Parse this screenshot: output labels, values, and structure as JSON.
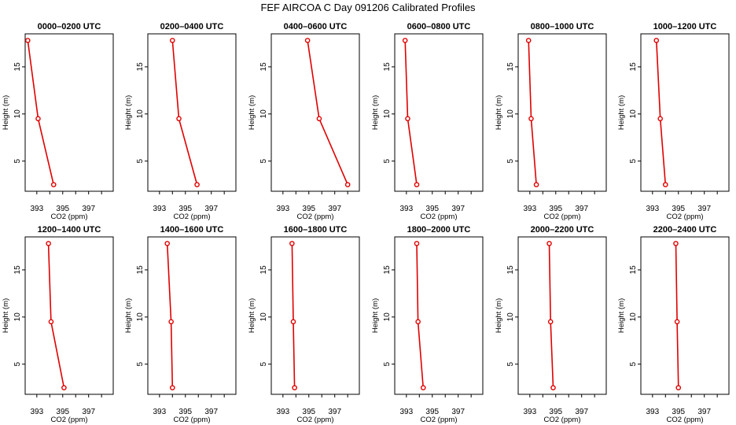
{
  "title": "FEF AIRCOA C  Day 091206  Calibrated Profiles",
  "colors": {
    "line": "#e00000",
    "axis": "#000000",
    "background": "#ffffff"
  },
  "chart_data": [
    {
      "type": "line",
      "title": "0000–0200 UTC",
      "xlabel": "CO2 (ppm)",
      "ylabel": "Height (m)",
      "xlim": [
        392.1,
        398.9
      ],
      "ylim": [
        1.8,
        18.5
      ],
      "xticks": [
        393,
        395,
        397
      ],
      "yticks": [
        5,
        10,
        15
      ],
      "x": [
        392.3,
        393.1,
        394.3
      ],
      "y": [
        17.8,
        9.5,
        2.5
      ]
    },
    {
      "type": "line",
      "title": "0200–0400 UTC",
      "xlabel": "CO2 (ppm)",
      "ylabel": "Height (m)",
      "xlim": [
        392.1,
        398.9
      ],
      "ylim": [
        1.8,
        18.5
      ],
      "xticks": [
        393,
        395,
        397
      ],
      "yticks": [
        5,
        10,
        15
      ],
      "x": [
        394.0,
        394.5,
        395.9
      ],
      "y": [
        17.8,
        9.5,
        2.5
      ]
    },
    {
      "type": "line",
      "title": "0400–0600 UTC",
      "xlabel": "CO2 (ppm)",
      "ylabel": "Height (m)",
      "xlim": [
        392.1,
        398.9
      ],
      "ylim": [
        1.8,
        18.5
      ],
      "xticks": [
        393,
        395,
        397
      ],
      "yticks": [
        5,
        10,
        15
      ],
      "x": [
        394.9,
        395.8,
        398.0
      ],
      "y": [
        17.8,
        9.5,
        2.5
      ]
    },
    {
      "type": "line",
      "title": "0600–0800 UTC",
      "xlabel": "CO2 (ppm)",
      "ylabel": "Height (m)",
      "xlim": [
        392.1,
        398.9
      ],
      "ylim": [
        1.8,
        18.5
      ],
      "xticks": [
        393,
        395,
        397
      ],
      "yticks": [
        5,
        10,
        15
      ],
      "x": [
        392.9,
        393.1,
        393.8
      ],
      "y": [
        17.8,
        9.5,
        2.5
      ]
    },
    {
      "type": "line",
      "title": "0800–1000 UTC",
      "xlabel": "CO2 (ppm)",
      "ylabel": "Height (m)",
      "xlim": [
        392.1,
        398.9
      ],
      "ylim": [
        1.8,
        18.5
      ],
      "xticks": [
        393,
        395,
        397
      ],
      "yticks": [
        5,
        10,
        15
      ],
      "x": [
        392.9,
        393.1,
        393.5
      ],
      "y": [
        17.8,
        9.5,
        2.5
      ]
    },
    {
      "type": "line",
      "title": "1000–1200 UTC",
      "xlabel": "CO2 (ppm)",
      "ylabel": "Height (m)",
      "xlim": [
        392.1,
        398.9
      ],
      "ylim": [
        1.8,
        18.5
      ],
      "xticks": [
        393,
        395,
        397
      ],
      "yticks": [
        5,
        10,
        15
      ],
      "x": [
        393.3,
        393.6,
        394.0
      ],
      "y": [
        17.8,
        9.5,
        2.5
      ]
    },
    {
      "type": "line",
      "title": "1200–1400 UTC",
      "xlabel": "CO2 (ppm)",
      "ylabel": "Height (m)",
      "xlim": [
        392.1,
        398.9
      ],
      "ylim": [
        1.8,
        18.5
      ],
      "xticks": [
        393,
        395,
        397
      ],
      "yticks": [
        5,
        10,
        15
      ],
      "x": [
        393.9,
        394.1,
        395.1
      ],
      "y": [
        17.8,
        9.5,
        2.5
      ]
    },
    {
      "type": "line",
      "title": "1400–1600 UTC",
      "xlabel": "CO2 (ppm)",
      "ylabel": "Height (m)",
      "xlim": [
        392.1,
        398.9
      ],
      "ylim": [
        1.8,
        18.5
      ],
      "xticks": [
        393,
        395,
        397
      ],
      "yticks": [
        5,
        10,
        15
      ],
      "x": [
        393.6,
        393.9,
        394.0
      ],
      "y": [
        17.8,
        9.5,
        2.5
      ]
    },
    {
      "type": "line",
      "title": "1600–1800 UTC",
      "xlabel": "CO2 (ppm)",
      "ylabel": "Height (m)",
      "xlim": [
        392.1,
        398.9
      ],
      "ylim": [
        1.8,
        18.5
      ],
      "xticks": [
        393,
        395,
        397
      ],
      "yticks": [
        5,
        10,
        15
      ],
      "x": [
        393.7,
        393.8,
        393.9
      ],
      "y": [
        17.8,
        9.5,
        2.5
      ]
    },
    {
      "type": "line",
      "title": "1800–2000 UTC",
      "xlabel": "CO2 (ppm)",
      "ylabel": "Height (m)",
      "xlim": [
        392.1,
        398.9
      ],
      "ylim": [
        1.8,
        18.5
      ],
      "xticks": [
        393,
        395,
        397
      ],
      "yticks": [
        5,
        10,
        15
      ],
      "x": [
        393.8,
        393.9,
        394.3
      ],
      "y": [
        17.8,
        9.5,
        2.5
      ]
    },
    {
      "type": "line",
      "title": "2000–2200 UTC",
      "xlabel": "CO2 (ppm)",
      "ylabel": "Height (m)",
      "xlim": [
        392.1,
        398.9
      ],
      "ylim": [
        1.8,
        18.5
      ],
      "xticks": [
        393,
        395,
        397
      ],
      "yticks": [
        5,
        10,
        15
      ],
      "x": [
        394.5,
        394.6,
        394.8
      ],
      "y": [
        17.8,
        9.5,
        2.5
      ]
    },
    {
      "type": "line",
      "title": "2200–2400 UTC",
      "xlabel": "CO2 (ppm)",
      "ylabel": "Height (m)",
      "xlim": [
        392.1,
        398.9
      ],
      "ylim": [
        1.8,
        18.5
      ],
      "xticks": [
        393,
        395,
        397
      ],
      "yticks": [
        5,
        10,
        15
      ],
      "x": [
        394.8,
        394.9,
        395.0
      ],
      "y": [
        17.8,
        9.5,
        2.5
      ]
    }
  ]
}
